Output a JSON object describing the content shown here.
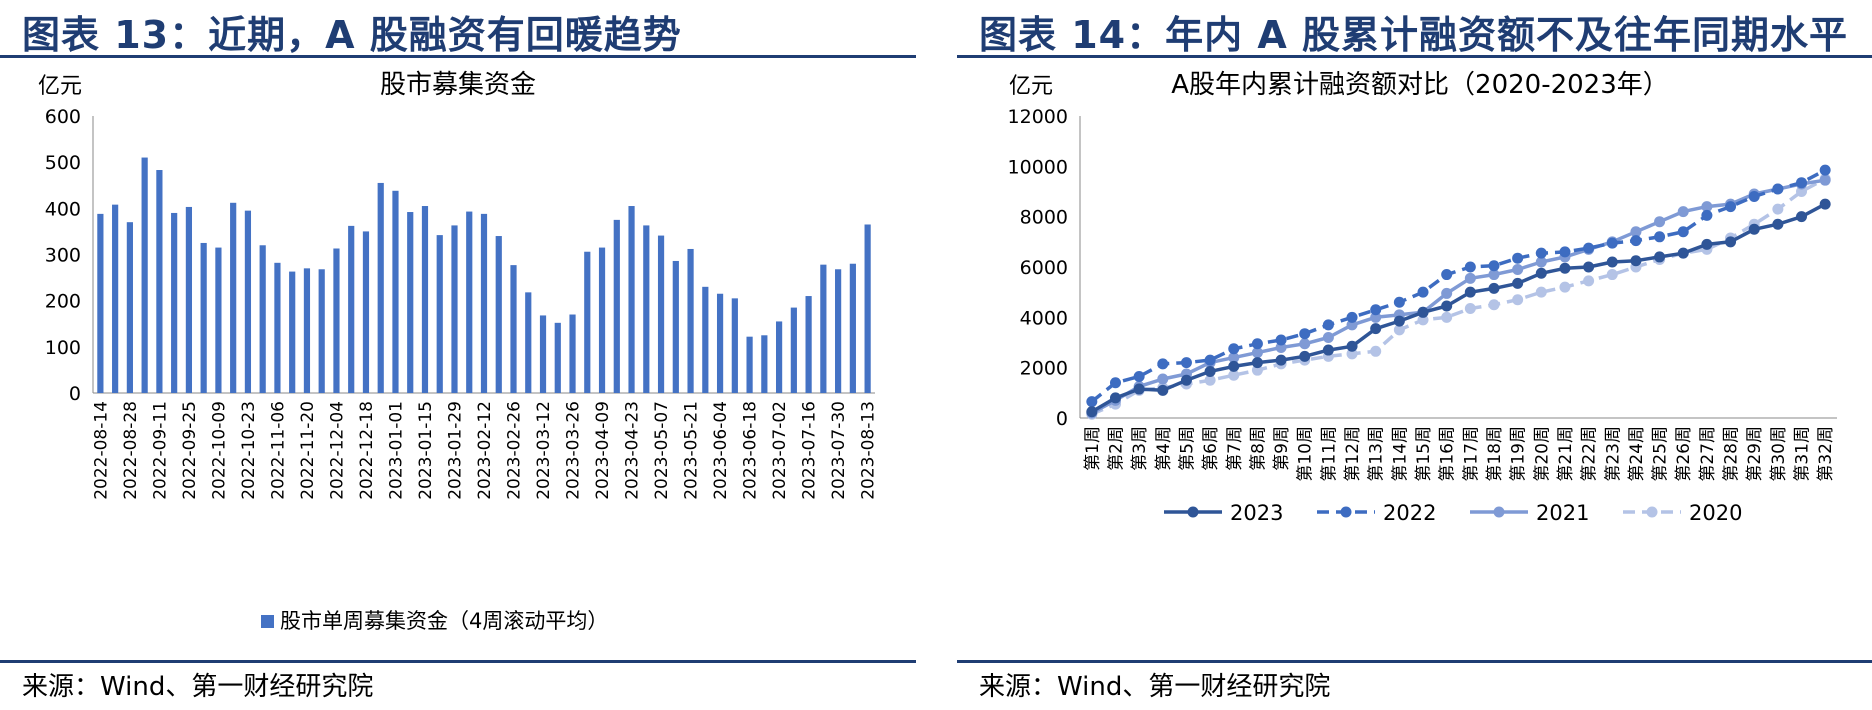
{
  "left": {
    "figure_title": "图表 13：近期，A 股融资有回暖趋势",
    "source": "来源：Wind、第一财经研究院",
    "chart_data": {
      "type": "bar",
      "title": "股市募集资金",
      "unit": "亿元",
      "ylim": [
        0,
        600
      ],
      "yticks": [
        0,
        100,
        200,
        300,
        400,
        500,
        600
      ],
      "legend_position": "bottom",
      "series": [
        {
          "name": "股市单周募集资金（4周滚动平均）",
          "color": "#4472c4"
        }
      ],
      "tick_labels": [
        "2022-08-14",
        "2022-08-28",
        "2022-09-11",
        "2022-09-25",
        "2022-10-09",
        "2022-10-23",
        "2022-11-06",
        "2022-11-20",
        "2022-12-04",
        "2022-12-18",
        "2023-01-01",
        "2023-01-15",
        "2023-01-29",
        "2023-02-12",
        "2023-02-26",
        "2023-03-12",
        "2023-03-26",
        "2023-04-09",
        "2023-04-23",
        "2023-05-07",
        "2023-05-21",
        "2023-06-04",
        "2023-06-18",
        "2023-07-02",
        "2023-07-16",
        "2023-07-30",
        "2023-08-13"
      ],
      "values": [
        388,
        408,
        370,
        510,
        483,
        390,
        403,
        325,
        315,
        412,
        395,
        320,
        282,
        263,
        270,
        268,
        313,
        362,
        350,
        455,
        438,
        392,
        405,
        342,
        363,
        393,
        388,
        340,
        277,
        218,
        168,
        152,
        170,
        306,
        315,
        375,
        405,
        363,
        341,
        286,
        312,
        230,
        215,
        205,
        122,
        125,
        155,
        185,
        210,
        278,
        268,
        280,
        365
      ]
    }
  },
  "right": {
    "figure_title": "图表 14：年内 A 股累计融资额不及往年同期水平",
    "source": "来源：Wind、第一财经研究院",
    "chart_data": {
      "type": "line",
      "title": "A股年内累计融资额对比（2020-2023年）",
      "unit": "亿元",
      "ylim": [
        0,
        12000
      ],
      "yticks": [
        0,
        2000,
        4000,
        6000,
        8000,
        10000,
        12000
      ],
      "legend_position": "bottom",
      "categories": [
        "第1周",
        "第2周",
        "第3周",
        "第4周",
        "第5周",
        "第6周",
        "第7周",
        "第8周",
        "第9周",
        "第10周",
        "第11周",
        "第12周",
        "第13周",
        "第14周",
        "第15周",
        "第16周",
        "第17周",
        "第18周",
        "第19周",
        "第20周",
        "第21周",
        "第22周",
        "第23周",
        "第24周",
        "第25周",
        "第26周",
        "第27周",
        "第28周",
        "第29周",
        "第30周",
        "第31周",
        "第32周"
      ],
      "series": [
        {
          "name": "2023",
          "color": "#2f5597",
          "dash": "solid",
          "values": [
            250,
            800,
            1150,
            1100,
            1500,
            1850,
            2050,
            2200,
            2300,
            2450,
            2700,
            2850,
            3550,
            3850,
            4200,
            4450,
            5000,
            5150,
            5350,
            5750,
            5950,
            6000,
            6200,
            6250,
            6400,
            6550,
            6900,
            7000,
            7500,
            7700,
            8000,
            8500
          ]
        },
        {
          "name": "2022",
          "color": "#3d6cc1",
          "dash": "dashed",
          "values": [
            650,
            1400,
            1650,
            2150,
            2200,
            2300,
            2750,
            2950,
            3100,
            3350,
            3700,
            4000,
            4300,
            4600,
            5000,
            5700,
            6000,
            6050,
            6350,
            6550,
            6600,
            6750,
            6950,
            7050,
            7200,
            7400,
            8050,
            8400,
            8800,
            9100,
            9350,
            9850
          ]
        },
        {
          "name": "2021",
          "color": "#7f9ad5",
          "dash": "solid",
          "values": [
            200,
            700,
            1250,
            1550,
            1750,
            2200,
            2400,
            2600,
            2800,
            2950,
            3200,
            3700,
            4000,
            4100,
            4200,
            4950,
            5550,
            5700,
            5900,
            6200,
            6400,
            6700,
            7000,
            7400,
            7800,
            8200,
            8400,
            8500,
            8900,
            9100,
            9300,
            9450
          ]
        },
        {
          "name": "2020",
          "color": "#b4c3e6",
          "dash": "dashed",
          "values": [
            150,
            550,
            1100,
            1200,
            1350,
            1500,
            1700,
            1900,
            2150,
            2300,
            2450,
            2550,
            2650,
            3500,
            3900,
            4000,
            4350,
            4500,
            4700,
            5000,
            5200,
            5450,
            5700,
            6000,
            6300,
            6550,
            6700,
            7150,
            7700,
            8300,
            9000,
            9500
          ]
        }
      ]
    }
  }
}
